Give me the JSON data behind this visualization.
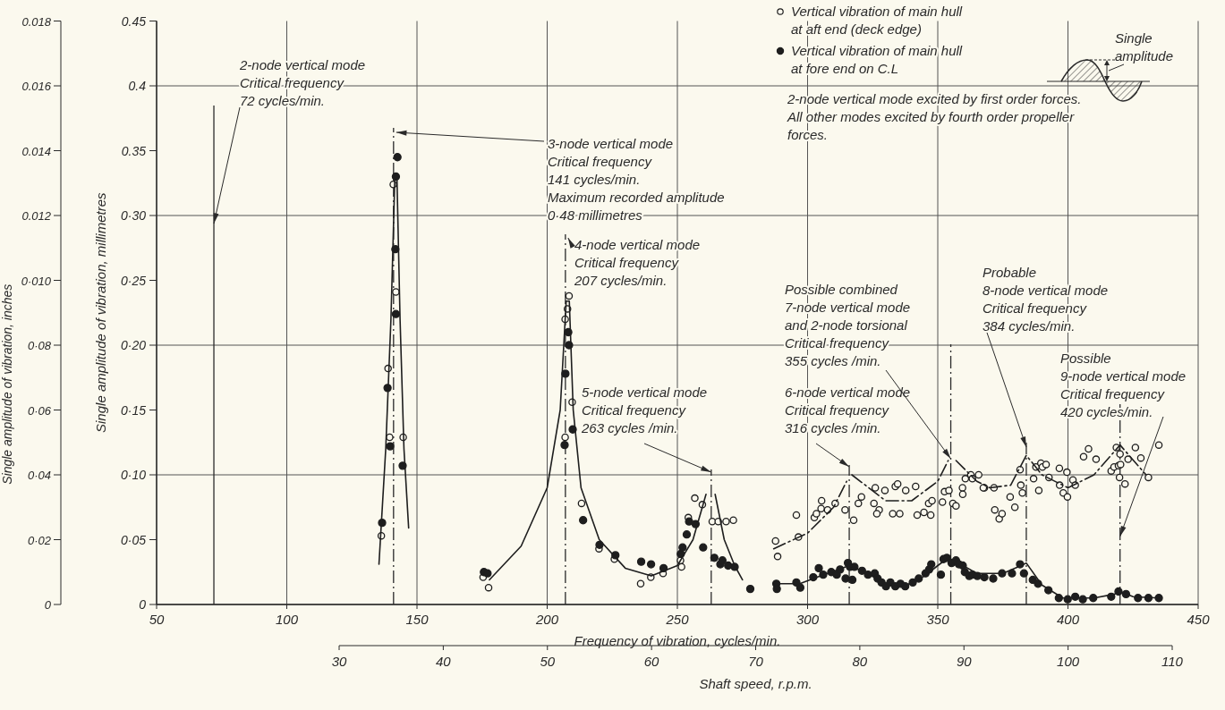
{
  "chart_data": {
    "type": "scatter",
    "xlabel": "Frequency of vibration, cycles/min.",
    "ylabel": "Single amplitude of vibration, millimetres",
    "y2label": "Single amplitude of vibration, inches",
    "x2label": "Shaft speed, r.p.m.",
    "xlim": [
      50,
      450
    ],
    "xticks": [
      50,
      100,
      150,
      200,
      250,
      300,
      350,
      400,
      450
    ],
    "x2lim": [
      30,
      110
    ],
    "x2ticks": [
      30,
      40,
      50,
      60,
      70,
      80,
      90,
      100,
      110
    ],
    "ylim": [
      0,
      0.45
    ],
    "yticks": [
      0,
      {
        "value": 0.05,
        "label": "0·05"
      },
      {
        "value": 0.1,
        "label": "0·10"
      },
      {
        "value": 0.15,
        "label": "0·15"
      },
      {
        "value": 0.2,
        "label": "0·20"
      },
      {
        "value": 0.25,
        "label": "0·25"
      },
      {
        "value": 0.3,
        "label": "0·30"
      },
      0.35,
      0.4,
      0.45
    ],
    "y2lim": [
      0,
      0.018
    ],
    "y2ticks": [
      0,
      {
        "value": 0.002,
        "label": "0·02"
      },
      {
        "value": 0.004,
        "label": "0·04"
      },
      {
        "value": 0.006,
        "label": "0·06"
      },
      {
        "value": 0.008,
        "label": "0·08"
      },
      {
        "value": 0.01,
        "label": "0·010"
      },
      0.012,
      0.014,
      0.016,
      0.018
    ],
    "grid": true,
    "legend": "top right",
    "marker": "circle",
    "series": [
      {
        "name": "Vertical vibration of main hull at aft end (deck edge)",
        "type": "scatter",
        "color": "#1e1e1e",
        "x": [
          140.9,
          141.9,
          138.9,
          139.5,
          144.7,
          136.3,
          177.5,
          175.4,
          208.4,
          207.8,
          206.9,
          209.6,
          206.9,
          213.2,
          219.9,
          225.8,
          235.9,
          239.8,
          244.5,
          251.6,
          251.2,
          256.7,
          259.6,
          254.2,
          263.4,
          265.7,
          268.7,
          271.5,
          287.7,
          288.5,
          295.7,
          296.5,
          302.6,
          303.4,
          305.2,
          305.4,
          307.7,
          310.6,
          314.4,
          317.7,
          319.5,
          320.7,
          325.5,
          326,
          327.5,
          326.6,
          329.7,
          332.7,
          335.4,
          333.7,
          334.6,
          337.7,
          341.5,
          342.1,
          344.7,
          347.3,
          346.5,
          347.8,
          351.8,
          352.6,
          354.3,
          355.8,
          357,
          359.5,
          359.6,
          360.6,
          362.7,
          363.3,
          365.7,
          367.9,
          367.5,
          371.6,
          371.9,
          373.6,
          374.7,
          377.8,
          379.6,
          381.6,
          381.9,
          382.5,
          386.8,
          387.7,
          388.8,
          389.6,
          390.2,
          391.6,
          392.7,
          396.7,
          396.8,
          398.2,
          399.6,
          399.8,
          401.9,
          402.8,
          406,
          407.9,
          410.8,
          416.6,
          417.7,
          418.6,
          419.4,
          420,
          420.2,
          419.8,
          421.9,
          423.1,
          425.9,
          428,
          430.9,
          434.9
        ],
        "values": [
          0.324,
          0.241,
          0.182,
          0.129,
          0.129,
          0.053,
          0.013,
          0.021,
          0.238,
          0.228,
          0.22,
          0.156,
          0.129,
          0.078,
          0.043,
          0.035,
          0.016,
          0.021,
          0.024,
          0.029,
          0.034,
          0.082,
          0.077,
          0.067,
          0.064,
          0.064,
          0.064,
          0.065,
          0.049,
          0.037,
          0.069,
          0.052,
          0.067,
          0.07,
          0.074,
          0.08,
          0.073,
          0.078,
          0.073,
          0.065,
          0.078,
          0.083,
          0.078,
          0.09,
          0.073,
          0.07,
          0.088,
          0.07,
          0.07,
          0.091,
          0.093,
          0.088,
          0.091,
          0.069,
          0.071,
          0.069,
          0.078,
          0.08,
          0.079,
          0.087,
          0.088,
          0.078,
          0.076,
          0.09,
          0.085,
          0.097,
          0.1,
          0.097,
          0.1,
          0.09,
          0.09,
          0.09,
          0.073,
          0.066,
          0.07,
          0.083,
          0.075,
          0.104,
          0.092,
          0.086,
          0.097,
          0.106,
          0.088,
          0.109,
          0.106,
          0.108,
          0.098,
          0.105,
          0.092,
          0.086,
          0.102,
          0.083,
          0.096,
          0.092,
          0.114,
          0.12,
          0.112,
          0.103,
          0.106,
          0.121,
          0.107,
          0.116,
          0.108,
          0.098,
          0.093,
          0.112,
          0.121,
          0.113,
          0.098,
          0.123
        ]
      },
      {
        "name": "Vertical vibration of main hull at fore end on C.L",
        "type": "scatter",
        "color": "#1e1e1e",
        "x": [
          142.5,
          141.9,
          141.7,
          141.9,
          138.7,
          139.7,
          144.5,
          136.6,
          175.7,
          177.1,
          208.1,
          208.4,
          207,
          206.7,
          209.8,
          213.8,
          220.1,
          226.2,
          236.1,
          239.9,
          244.7,
          251.3,
          252,
          253.6,
          254.5,
          257,
          259.9,
          264.2,
          266.5,
          267.3,
          269.5,
          272,
          278,
          288,
          288.2,
          295.7,
          297.2,
          302.2,
          304.3,
          306,
          309.1,
          311.2,
          312.5,
          314.6,
          315.5,
          316.3,
          317.2,
          318,
          320.9,
          323.2,
          325.8,
          326.9,
          328.4,
          330.1,
          331.8,
          333.7,
          335.7,
          337.5,
          340.4,
          342.7,
          345.3,
          346.7,
          347.5,
          351.2,
          352.2,
          353.5,
          355.3,
          357,
          358.1,
          359.6,
          360.4,
          362.1,
          363.3,
          365.2,
          367.9,
          371.3,
          374.7,
          378.5,
          381.6,
          383.1,
          386.5,
          388.5,
          392.5,
          396.5,
          399.9,
          402.8,
          405.7,
          409.7,
          416.6,
          419.4,
          422.3,
          426.9,
          430.9,
          434.9
        ],
        "values": [
          0.345,
          0.33,
          0.274,
          0.224,
          0.167,
          0.122,
          0.107,
          0.063,
          0.025,
          0.024,
          0.21,
          0.2,
          0.178,
          0.123,
          0.135,
          0.065,
          0.046,
          0.038,
          0.033,
          0.031,
          0.028,
          0.039,
          0.044,
          0.054,
          0.064,
          0.062,
          0.044,
          0.036,
          0.031,
          0.034,
          0.03,
          0.029,
          0.012,
          0.016,
          0.012,
          0.017,
          0.013,
          0.021,
          0.028,
          0.023,
          0.025,
          0.023,
          0.027,
          0.02,
          0.032,
          0.029,
          0.019,
          0.029,
          0.026,
          0.023,
          0.024,
          0.02,
          0.017,
          0.014,
          0.017,
          0.014,
          0.016,
          0.014,
          0.017,
          0.02,
          0.024,
          0.027,
          0.031,
          0.023,
          0.035,
          0.036,
          0.032,
          0.034,
          0.031,
          0.03,
          0.025,
          0.022,
          0.023,
          0.022,
          0.021,
          0.02,
          0.024,
          0.024,
          0.031,
          0.024,
          0.019,
          0.016,
          0.011,
          0.005,
          0.004,
          0.006,
          0.004,
          0.005,
          0.006,
          0.01,
          0.008,
          0.005,
          0.005,
          0.005
        ]
      },
      {
        "type": "line",
        "color": "#1e1e1e",
        "line_style": "solid",
        "marker": "none",
        "x": [
          135.4,
          138,
          140,
          141.5,
          142.3,
          143.5,
          145,
          146.8,
          150,
          177.8,
          190,
          200,
          205,
          207.3,
          208.5,
          210,
          213,
          220,
          230,
          240,
          250,
          256,
          261,
          263,
          264.5,
          268,
          272,
          275,
          280,
          287,
          297,
          305,
          312,
          316,
          322,
          330,
          338,
          345,
          350,
          354,
          358,
          365,
          375,
          382,
          384,
          390,
          398,
          410,
          418,
          420,
          425,
          435
        ],
        "values": [
          0.031,
          0.12,
          0.22,
          0.33,
          0.33,
          0.22,
          0.12,
          0.059,
          null,
          0.019,
          0.045,
          0.09,
          0.15,
          0.234,
          0.234,
          0.15,
          0.09,
          0.05,
          0.028,
          0.022,
          0.03,
          0.05,
          0.085,
          null,
          0.085,
          0.05,
          0.03,
          0.019,
          null,
          0.016,
          0.016,
          0.022,
          0.027,
          0.03,
          0.025,
          0.016,
          0.015,
          0.022,
          0.03,
          0.036,
          0.032,
          0.024,
          0.024,
          0.03,
          0.032,
          0.015,
          0.005,
          0.005,
          0.008,
          0.01,
          0.006,
          0.005
        ]
      },
      {
        "type": "line",
        "color": "#1e1e1e",
        "line_style": "dashed",
        "marker": "none",
        "x": [
          287,
          300,
          310,
          315,
          316,
          317,
          330,
          340,
          350,
          354,
          355,
          357,
          365,
          370,
          378,
          384,
          390,
          400,
          410,
          420,
          430
        ],
        "values": [
          0.043,
          0.055,
          0.075,
          0.095,
          null,
          0.1,
          0.08,
          0.08,
          0.095,
          0.111,
          null,
          0.111,
          0.095,
          0.09,
          0.092,
          0.115,
          0.1,
          0.09,
          0.1,
          0.123,
          0.1
        ]
      }
    ],
    "ref_lines": [
      {
        "axis": "x",
        "value": 72,
        "line_style": "solid",
        "label": "2-node vertical mode\nCritical frequency\n72 cycles/min."
      },
      {
        "axis": "x",
        "value": 141,
        "line_style": "dashed",
        "label": "3-node vertical mode\nCritical frequency\n141 cycles/min.\nMaximum recorded amplitude\n0·48 millimetres"
      },
      {
        "axis": "x",
        "value": 207,
        "line_style": "dashed",
        "label": "4-node vertical mode\nCritical frequency\n207 cycles/min."
      },
      {
        "axis": "x",
        "value": 263,
        "line_style": "dashed",
        "label": "5-node vertical mode\nCritical frequency\n263 cycles /min."
      },
      {
        "axis": "x",
        "value": 316,
        "line_style": "dashed",
        "label": "6-node vertical mode\nCritical frequency\n316 cycles /min."
      },
      {
        "axis": "x",
        "value": 355,
        "line_style": "dashed",
        "label": "Possible combined\n7-node vertical mode\nand 2-node torsional\nCritical frequency\n355 cycles /min."
      },
      {
        "axis": "x",
        "value": 384,
        "line_style": "dashed",
        "label": "Probable\n8-node vertical mode\nCritical frequency\n384 cycles/min."
      },
      {
        "axis": "x",
        "value": 420,
        "line_style": "dashed",
        "label": "Possible\n9-node vertical mode\nCritical frequency\n420 cycles/min."
      }
    ],
    "annotations": [
      "2-node vertical mode excited by first order forces.\nAll other modes excited by fourth order propeller\nforces.",
      "Single\namplitude"
    ]
  }
}
